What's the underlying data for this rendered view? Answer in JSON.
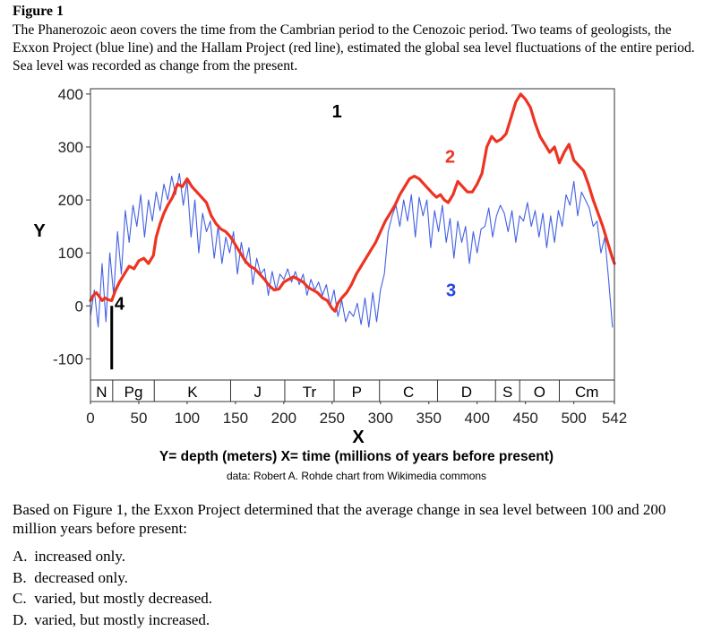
{
  "figure": {
    "title": "Figure 1",
    "caption": "The Phanerozoic aeon covers the time from the Cambrian period to the Cenozoic period. Two teams of geologists, the Exxon Project (blue line) and the Hallam Project (red line), estimated the global sea level fluctuations of the entire period. Sea level was recorded as change from the present."
  },
  "chart_data": {
    "type": "line",
    "x_axis_letter": "X",
    "y_axis_letter": "Y",
    "axis_definition": "Y= depth (meters) X= time (millions of years before present)",
    "credit": "data: Robert A. Rohde chart from Wikimedia commons",
    "xlim": [
      0,
      542
    ],
    "ylim": [
      -140,
      410
    ],
    "y_ticks": [
      -100,
      0,
      100,
      200,
      300,
      400
    ],
    "y_tick_labels": [
      "-100",
      "0",
      "100",
      "200",
      "300",
      "400"
    ],
    "x_ticks": [
      0,
      50,
      100,
      150,
      200,
      250,
      300,
      350,
      400,
      450,
      500,
      542
    ],
    "x_tick_labels": [
      "0",
      "50",
      "100",
      "150",
      "200",
      "250",
      "300",
      "350",
      "400",
      "450",
      "500",
      "542"
    ],
    "grid": false,
    "periods": [
      {
        "label": "N",
        "start": 0,
        "end": 23
      },
      {
        "label": "Pg",
        "start": 23,
        "end": 66
      },
      {
        "label": "K",
        "start": 66,
        "end": 145
      },
      {
        "label": "J",
        "start": 145,
        "end": 201
      },
      {
        "label": "Tr",
        "start": 201,
        "end": 252
      },
      {
        "label": "P",
        "start": 252,
        "end": 299
      },
      {
        "label": "C",
        "start": 299,
        "end": 359
      },
      {
        "label": "D",
        "start": 359,
        "end": 419
      },
      {
        "label": "S",
        "start": 419,
        "end": 444
      },
      {
        "label": "O",
        "start": 444,
        "end": 485
      },
      {
        "label": "Cm",
        "start": 485,
        "end": 542
      }
    ],
    "annotations": [
      {
        "label": "1",
        "x": 255,
        "y": 368
      },
      {
        "label": "2",
        "x": 372,
        "y": 282
      },
      {
        "label": "3",
        "x": 373,
        "y": 30
      },
      {
        "label": "4",
        "x": 30,
        "y": 5
      }
    ],
    "marker_bar": {
      "x": 22,
      "y_from": -120,
      "y_to": 0
    },
    "series": [
      {
        "id": "hallam",
        "color": "#ee3322",
        "x": [
          0,
          3,
          6,
          9,
          12,
          15,
          18,
          22,
          26,
          30,
          35,
          40,
          45,
          50,
          55,
          60,
          65,
          68,
          72,
          76,
          80,
          85,
          90,
          95,
          100,
          105,
          110,
          115,
          120,
          125,
          130,
          135,
          140,
          145,
          150,
          155,
          160,
          165,
          170,
          175,
          180,
          185,
          190,
          195,
          200,
          205,
          210,
          215,
          220,
          225,
          230,
          235,
          240,
          245,
          250,
          253,
          256,
          260,
          265,
          270,
          275,
          280,
          285,
          290,
          295,
          300,
          305,
          310,
          315,
          320,
          325,
          330,
          335,
          340,
          345,
          350,
          355,
          358,
          362,
          366,
          370,
          375,
          380,
          385,
          390,
          395,
          400,
          405,
          410,
          415,
          420,
          425,
          430,
          435,
          440,
          445,
          450,
          455,
          460,
          465,
          470,
          475,
          480,
          485,
          490,
          495,
          500,
          505,
          510,
          515,
          520,
          525,
          530,
          535,
          540,
          542
        ],
        "y": [
          10,
          20,
          25,
          18,
          10,
          15,
          12,
          10,
          30,
          45,
          60,
          75,
          70,
          85,
          90,
          80,
          95,
          130,
          155,
          175,
          190,
          205,
          230,
          225,
          240,
          225,
          215,
          205,
          195,
          170,
          155,
          145,
          140,
          130,
          115,
          100,
          85,
          75,
          70,
          60,
          50,
          38,
          30,
          32,
          45,
          50,
          55,
          50,
          45,
          35,
          30,
          25,
          15,
          10,
          -5,
          -10,
          5,
          15,
          25,
          40,
          60,
          75,
          90,
          105,
          120,
          140,
          160,
          175,
          190,
          210,
          225,
          240,
          245,
          240,
          230,
          220,
          210,
          205,
          210,
          200,
          195,
          210,
          235,
          225,
          215,
          215,
          230,
          250,
          300,
          320,
          310,
          315,
          325,
          355,
          385,
          400,
          390,
          375,
          345,
          320,
          305,
          290,
          300,
          270,
          290,
          305,
          275,
          265,
          255,
          230,
          200,
          175,
          150,
          120,
          90,
          80
        ]
      },
      {
        "id": "exxon",
        "color": "#2244dd",
        "x": [
          0,
          4,
          8,
          12,
          16,
          20,
          24,
          28,
          32,
          36,
          40,
          44,
          48,
          52,
          56,
          60,
          64,
          68,
          72,
          76,
          80,
          84,
          88,
          92,
          96,
          100,
          104,
          108,
          112,
          116,
          120,
          124,
          128,
          132,
          136,
          140,
          144,
          148,
          152,
          156,
          160,
          164,
          168,
          172,
          176,
          180,
          184,
          188,
          192,
          196,
          200,
          204,
          208,
          212,
          216,
          220,
          224,
          228,
          232,
          236,
          240,
          244,
          248,
          252,
          256,
          260,
          264,
          268,
          272,
          276,
          280,
          284,
          288,
          292,
          296,
          300,
          304,
          308,
          312,
          316,
          320,
          324,
          328,
          332,
          336,
          340,
          344,
          348,
          352,
          356,
          360,
          364,
          368,
          372,
          376,
          380,
          384,
          388,
          392,
          396,
          400,
          404,
          408,
          412,
          416,
          420,
          424,
          428,
          432,
          436,
          440,
          444,
          448,
          452,
          456,
          460,
          464,
          468,
          472,
          476,
          480,
          484,
          488,
          492,
          496,
          500,
          504,
          508,
          512,
          516,
          520,
          524,
          528,
          532,
          536,
          540
        ],
        "y": [
          -20,
          30,
          -40,
          80,
          -30,
          100,
          20,
          140,
          60,
          180,
          120,
          190,
          150,
          210,
          130,
          200,
          160,
          215,
          180,
          230,
          200,
          245,
          210,
          250,
          190,
          235,
          130,
          200,
          100,
          175,
          140,
          160,
          90,
          150,
          80,
          130,
          100,
          140,
          60,
          120,
          80,
          110,
          40,
          90,
          60,
          70,
          20,
          65,
          30,
          60,
          50,
          70,
          45,
          65,
          40,
          60,
          20,
          50,
          30,
          45,
          20,
          40,
          0,
          30,
          -20,
          10,
          -30,
          -10,
          -20,
          5,
          -35,
          15,
          -40,
          25,
          -30,
          30,
          60,
          140,
          170,
          190,
          150,
          200,
          160,
          210,
          130,
          205,
          170,
          200,
          110,
          180,
          140,
          190,
          120,
          165,
          90,
          160,
          120,
          150,
          80,
          140,
          100,
          145,
          150,
          185,
          130,
          170,
          190,
          175,
          140,
          180,
          120,
          170,
          160,
          195,
          150,
          180,
          130,
          175,
          110,
          170,
          120,
          180,
          150,
          210,
          190,
          235,
          170,
          215,
          200,
          185,
          150,
          160,
          100,
          130,
          50,
          -40
        ]
      }
    ]
  },
  "question": {
    "stem": "Based on Figure 1, the Exxon Project determined that the average change in sea level between 100 and 200 million years before present:",
    "options": [
      {
        "letter": "A.",
        "text": "increased only."
      },
      {
        "letter": "B.",
        "text": "decreased only."
      },
      {
        "letter": "C.",
        "text": "varied, but mostly decreased."
      },
      {
        "letter": "D.",
        "text": "varied, but mostly increased."
      }
    ]
  }
}
